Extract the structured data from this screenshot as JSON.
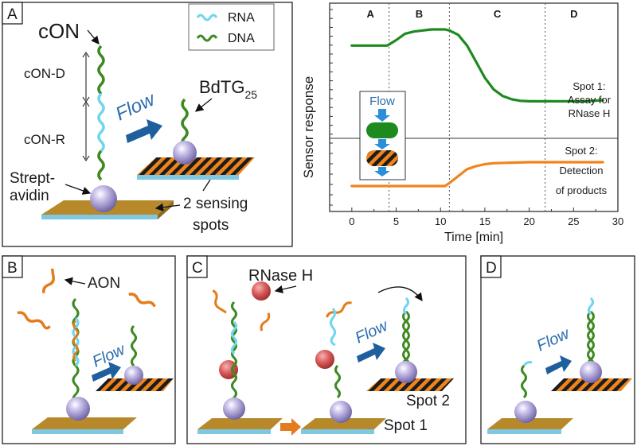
{
  "colors": {
    "rna": "#6fd6ee",
    "dna": "#3d8a20",
    "aon": "#e47c1d",
    "trace_spot1": "#1e8a1e",
    "trace_spot2": "#f0841c",
    "flow_text": "#2b6cb0",
    "flow_arrow": "#1f5f9e",
    "sphere": "#9a8fc8",
    "rnase": "#d95b5b",
    "substrate": "#b8892a"
  },
  "panel_a": {
    "tag": "A",
    "legend": {
      "rna": "RNA",
      "dna": "DNA"
    },
    "con": "cON",
    "con_d": "cON-D",
    "con_r": "cON-R",
    "flow": "Flow",
    "bdtg_base": "BdTG",
    "bdtg_sub": "25",
    "strept_1": "Strept-",
    "strept_2": "avidin",
    "sensing_1": "2 sensing",
    "sensing_2": "spots"
  },
  "chart": {
    "phases": [
      "A",
      "B",
      "C",
      "D"
    ],
    "ylabel": "Sensor response",
    "xlabel": "Time [min]",
    "xticks": [
      "0",
      "5",
      "10",
      "15",
      "20",
      "25",
      "30"
    ],
    "inset_flow": "Flow",
    "spot1": [
      "Spot 1:",
      "Assay for",
      "RNase H"
    ],
    "spot2": [
      "Spot 2:",
      "Detection",
      "of products"
    ]
  },
  "chart_data": {
    "type": "line",
    "title": "",
    "xlabel": "Time [min]",
    "ylabel": "Sensor response",
    "xlim": [
      -2.5,
      30
    ],
    "phase_boundaries": [
      4.2,
      11,
      21.8
    ],
    "series": [
      {
        "name": "Spot 1: Assay for RNase H",
        "x": [
          0,
          2,
          4,
          5,
          6,
          7,
          8,
          9,
          10,
          10.5,
          11,
          12,
          13,
          14,
          15,
          16,
          17,
          18,
          19,
          20,
          22,
          24,
          26,
          28.3
        ],
        "y": [
          0.85,
          0.85,
          0.85,
          0.9,
          0.96,
          0.98,
          0.99,
          1.0,
          1.0,
          1.0,
          0.99,
          0.95,
          0.85,
          0.7,
          0.55,
          0.44,
          0.38,
          0.35,
          0.335,
          0.33,
          0.33,
          0.33,
          0.33,
          0.34
        ]
      },
      {
        "name": "Spot 2: Detection of products",
        "x": [
          0,
          4,
          8,
          10.5,
          11,
          12,
          13,
          14,
          15,
          16,
          18,
          20,
          22,
          24,
          26,
          28.3
        ],
        "y": [
          0.0,
          0.0,
          0.0,
          0.0,
          0.03,
          0.1,
          0.17,
          0.2,
          0.22,
          0.23,
          0.235,
          0.24,
          0.24,
          0.24,
          0.24,
          0.24
        ]
      }
    ]
  },
  "panel_b": {
    "tag": "B",
    "aon": "AON",
    "flow": "Flow"
  },
  "panel_c": {
    "tag": "C",
    "rnase": "RNase H",
    "flow": "Flow",
    "spot1": "Spot 1",
    "spot2": "Spot 2"
  },
  "panel_d": {
    "tag": "D",
    "flow": "Flow"
  }
}
